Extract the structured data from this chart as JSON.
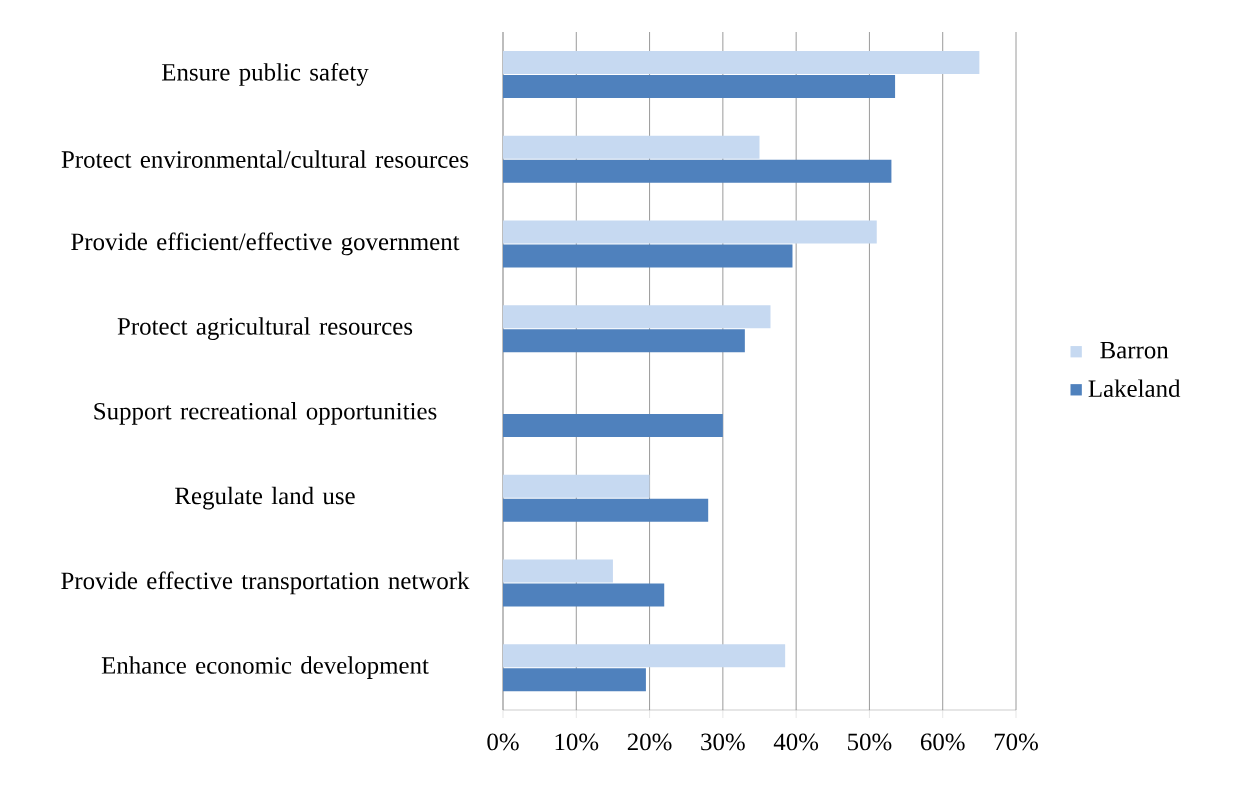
{
  "chart_data": {
    "type": "bar",
    "orientation": "horizontal",
    "categories": [
      "Ensure public safety",
      "Protect environmental/cultural resources",
      "Provide efficient/effective government",
      "Protect agricultural resources",
      "Support recreational opportunities",
      "Regulate land use",
      "Provide effective transportation network",
      "Enhance economic development"
    ],
    "series": [
      {
        "name": "Barron",
        "color": "#c6d9f1",
        "values": [
          65,
          35,
          51,
          36.5,
          null,
          20,
          15,
          38.5
        ]
      },
      {
        "name": "Lakeland",
        "color": "#4f81bd",
        "values": [
          53.5,
          53,
          39.5,
          33,
          30,
          28,
          22,
          19.5
        ]
      }
    ],
    "xlim": [
      0,
      70
    ],
    "xticks": [
      {
        "value": 0,
        "label": "0%"
      },
      {
        "value": 10,
        "label": "10%"
      },
      {
        "value": 20,
        "label": "20%"
      },
      {
        "value": 30,
        "label": "30%"
      },
      {
        "value": 40,
        "label": "40%"
      },
      {
        "value": 50,
        "label": "50%"
      },
      {
        "value": 60,
        "label": "60%"
      },
      {
        "value": 70,
        "label": "70%"
      }
    ],
    "grid": "x",
    "legend": "right"
  }
}
